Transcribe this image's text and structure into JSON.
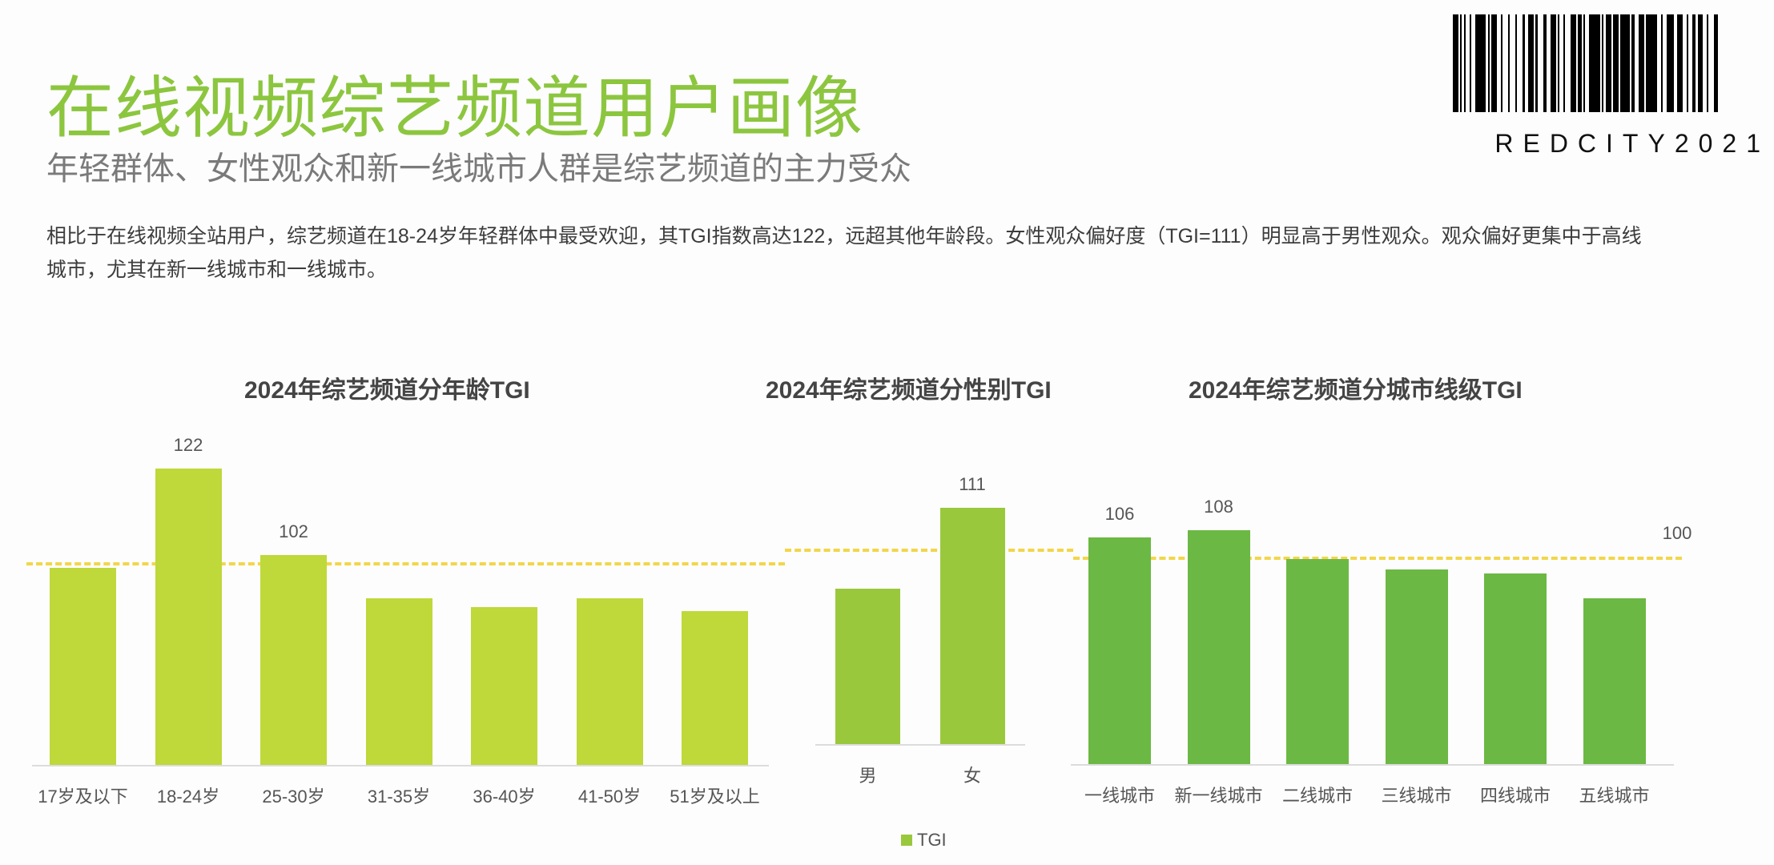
{
  "header": {
    "title": "在线视频综艺频道用户画像",
    "subtitle": "年轻群体、女性观众和新一线城市人群是综艺频道的主力受众",
    "description": "相比于在线视频全站用户，综艺频道在18-24岁年轻群体中最受欢迎，其TGI指数高达122，远超其他年龄段。女性观众偏好度（TGI=111）明显高于男性观众。观众偏好更集中于高线城市，尤其在新一线城市和一线城市。"
  },
  "watermark": {
    "barcode_text": "REDCITY2021"
  },
  "legend": {
    "label": "TGI",
    "color": "#9ac83c"
  },
  "reference_line": {
    "value": 100,
    "label": "100",
    "color": "#f2d64b"
  },
  "chart_data": [
    {
      "type": "bar",
      "title": "2024年综艺频道分年龄TGI",
      "categories": [
        "17岁及以下",
        "18-24岁",
        "25-30岁",
        "31-35岁",
        "36-40岁",
        "41-50岁",
        "51岁及以上"
      ],
      "values": [
        99,
        122,
        102,
        92,
        90,
        92,
        89
      ],
      "value_labels": [
        "",
        "122",
        "102",
        "",
        "",
        "",
        ""
      ],
      "series": [
        {
          "name": "TGI",
          "values": [
            99,
            122,
            102,
            92,
            90,
            92,
            89
          ]
        }
      ],
      "color": "#bfd83a",
      "xlabel": "",
      "ylabel": "TGI",
      "reference_line": 100,
      "ylim": [
        54,
        125
      ],
      "grid": false,
      "legend_position": "bottom"
    },
    {
      "type": "bar",
      "title": "2024年综艺频道分性别TGI",
      "categories": [
        "男",
        "女"
      ],
      "values": [
        90,
        111
      ],
      "value_labels": [
        "",
        "111"
      ],
      "series": [
        {
          "name": "TGI",
          "values": [
            90,
            111
          ]
        }
      ],
      "color": "#9ac83c",
      "xlabel": "",
      "ylabel": "TGI",
      "reference_line": 100,
      "grid": false,
      "legend_position": "bottom"
    },
    {
      "type": "bar",
      "title": "2024年综艺频道分城市线级TGI",
      "categories": [
        "一线城市",
        "新一线城市",
        "二线城市",
        "三线城市",
        "四线城市",
        "五线城市"
      ],
      "values": [
        106,
        108,
        100,
        97,
        96,
        89
      ],
      "value_labels": [
        "106",
        "108",
        "",
        "",
        "",
        ""
      ],
      "series": [
        {
          "name": "TGI",
          "values": [
            106,
            108,
            100,
            97,
            96,
            89
          ]
        }
      ],
      "color": "#6cb844",
      "xlabel": "",
      "ylabel": "TGI",
      "reference_line": 100,
      "reference_label": "100",
      "grid": false,
      "legend_position": "bottom"
    }
  ]
}
